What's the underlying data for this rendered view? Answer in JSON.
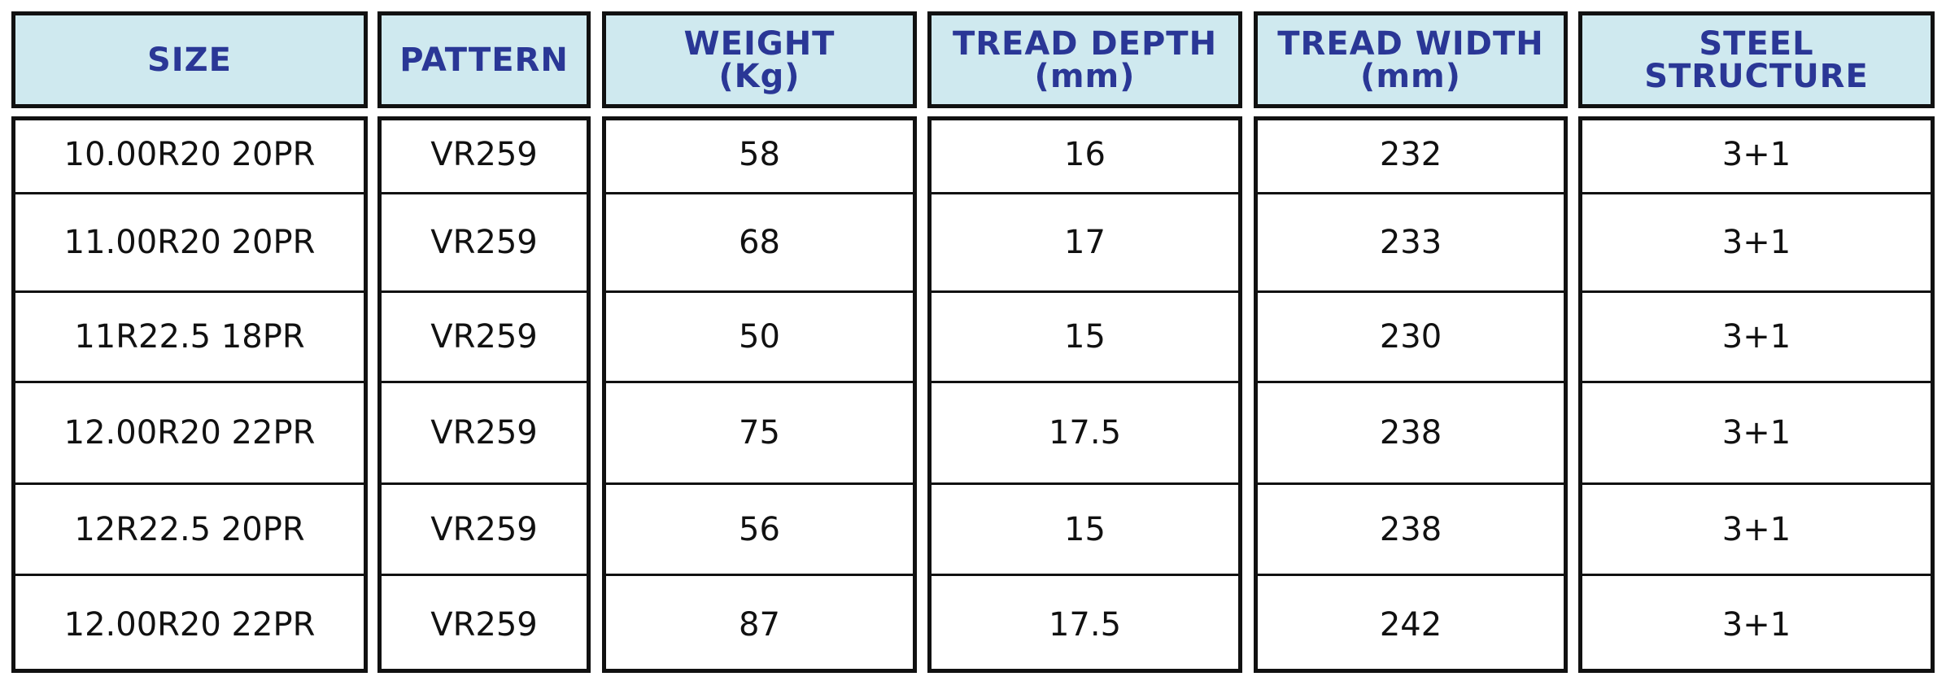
{
  "table": {
    "header": [
      [
        "SIZE"
      ],
      [
        "PATTERN"
      ],
      [
        "WEIGHT",
        "(Kg)"
      ],
      [
        "TREAD DEPTH",
        "(mm)"
      ],
      [
        "TREAD WIDTH",
        "(mm)"
      ],
      [
        "STEEL",
        "STRUCTURE"
      ]
    ],
    "rows": [
      [
        "10.00R20 20PR",
        "VR259",
        58,
        16,
        232,
        "3+1"
      ],
      [
        "11.00R20 20PR",
        "VR259",
        68,
        17,
        233,
        "3+1"
      ],
      [
        "11R22.5 18PR",
        "VR259",
        50,
        15,
        230,
        "3+1"
      ],
      [
        "12.00R20 22PR",
        "VR259",
        75,
        17.5,
        238,
        "3+1"
      ],
      [
        "12R22.5 20PR",
        "VR259",
        56,
        15,
        238,
        "3+1"
      ],
      [
        "12.00R20 22PR",
        "VR259",
        87,
        17.5,
        242,
        "3+1"
      ]
    ]
  }
}
